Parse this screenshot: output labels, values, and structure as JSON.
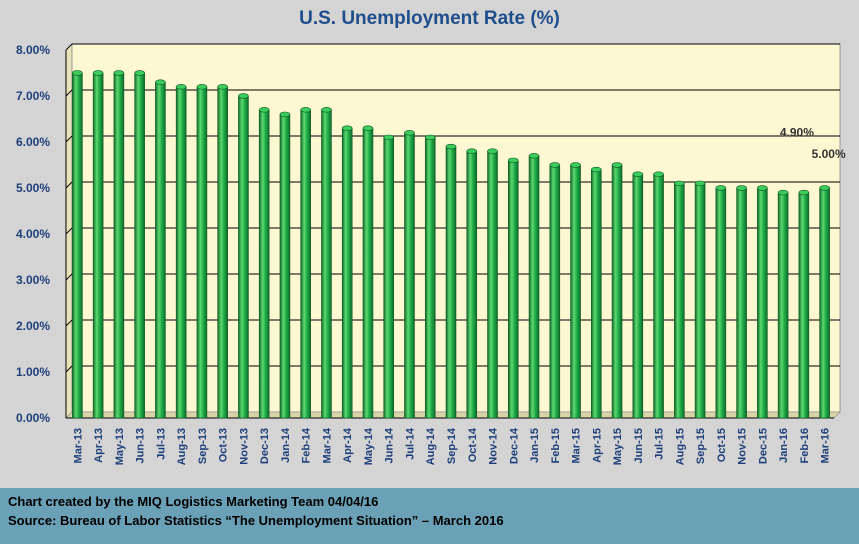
{
  "chart_data": {
    "type": "bar",
    "title": "U.S. Unemployment Rate (%)",
    "xlabel": "",
    "ylabel": "",
    "ylim": [
      0,
      8
    ],
    "y_ticks": [
      "0.00%",
      "1.00%",
      "2.00%",
      "3.00%",
      "4.00%",
      "5.00%",
      "6.00%",
      "7.00%",
      "8.00%"
    ],
    "grid": true,
    "categories": [
      "Mar-13",
      "Apr-13",
      "May-13",
      "Jun-13",
      "Jul-13",
      "Aug-13",
      "Sep-13",
      "Oct-13",
      "Nov-13",
      "Dec-13",
      "Jan-14",
      "Feb-14",
      "Mar-14",
      "Apr-14",
      "May-14",
      "Jun-14",
      "Jul-14",
      "Aug-14",
      "Sep-14",
      "Oct-14",
      "Nov-14",
      "Dec-14",
      "Jan-15",
      "Feb-15",
      "Mar-15",
      "Apr-15",
      "May-15",
      "Jun-15",
      "Jul-15",
      "Aug-15",
      "Sep-15",
      "Oct-15",
      "Nov-15",
      "Dec-15",
      "Jan-16",
      "Feb-16",
      "Mar-16"
    ],
    "values": [
      7.5,
      7.5,
      7.5,
      7.5,
      7.3,
      7.2,
      7.2,
      7.2,
      7.0,
      6.7,
      6.6,
      6.7,
      6.7,
      6.3,
      6.3,
      6.1,
      6.2,
      6.1,
      5.9,
      5.8,
      5.8,
      5.6,
      5.7,
      5.5,
      5.5,
      5.4,
      5.5,
      5.3,
      5.3,
      5.1,
      5.1,
      5.0,
      5.0,
      5.0,
      4.9,
      4.9,
      5.0
    ],
    "data_labels": [
      {
        "category": "Feb-16",
        "text": "4.90%"
      },
      {
        "category": "Mar-16",
        "text": "5.00%"
      }
    ],
    "colors": {
      "bar": "#22b14c",
      "bar_dark": "#0e6b2a",
      "bar_light": "#7fe08f",
      "plot_bg": "#fdf8d2",
      "title": "#1f4e8c"
    }
  },
  "footer": {
    "line1": "Chart created by the MIQ Logistics Marketing Team 04/04/16",
    "line2": "Source: Bureau of Labor Statistics “The Unemployment Situation” – March 2016"
  }
}
